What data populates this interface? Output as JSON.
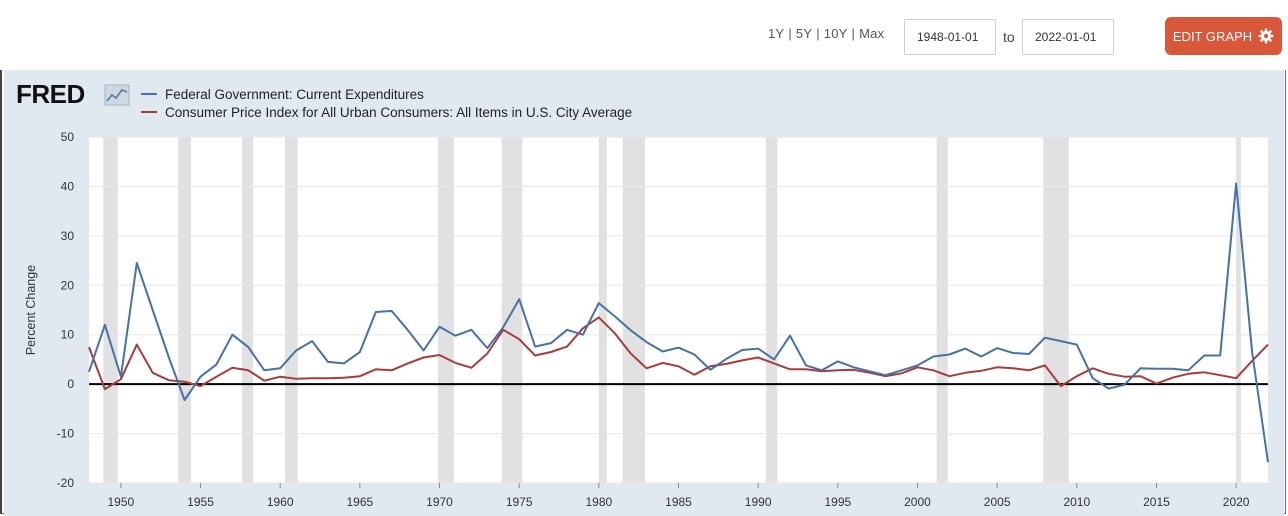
{
  "toolbar": {
    "ranges": [
      "1Y",
      "5Y",
      "10Y",
      "Max"
    ],
    "start_date": "1948-01-01",
    "to_label": "to",
    "end_date": "2022-01-01",
    "edit_label": "EDIT GRAPH",
    "edit_color": "#d9573a"
  },
  "logo": {
    "text": "FRED"
  },
  "chart_data": {
    "type": "line",
    "ylabel": "Percent Change",
    "ylim": [
      -20,
      50
    ],
    "yticks": [
      50,
      40,
      30,
      20,
      10,
      0,
      -10,
      -20
    ],
    "xlim": [
      1948,
      2022
    ],
    "xticks": [
      1950,
      1955,
      1960,
      1965,
      1970,
      1975,
      1980,
      1985,
      1990,
      1995,
      2000,
      2005,
      2010,
      2015,
      2020
    ],
    "grid": true,
    "legend_position": "top-left",
    "recessions": [
      [
        1948.9,
        1949.8
      ],
      [
        1953.6,
        1954.4
      ],
      [
        1957.6,
        1958.3
      ],
      [
        1960.3,
        1961.1
      ],
      [
        1969.9,
        1970.9
      ],
      [
        1973.9,
        1975.2
      ],
      [
        1980.0,
        1980.5
      ],
      [
        1981.5,
        1982.9
      ],
      [
        1990.5,
        1991.2
      ],
      [
        2001.2,
        2001.9
      ],
      [
        2007.9,
        2009.5
      ],
      [
        2020.0,
        2020.3
      ]
    ],
    "series": [
      {
        "name": "Federal Government: Current Expenditures",
        "color": "#4572a7",
        "x": [
          1948,
          1949,
          1950,
          1951,
          1952,
          1953,
          1954,
          1955,
          1956,
          1957,
          1958,
          1959,
          1960,
          1961,
          1962,
          1963,
          1964,
          1965,
          1966,
          1967,
          1968,
          1969,
          1970,
          1971,
          1972,
          1973,
          1974,
          1975,
          1976,
          1977,
          1978,
          1979,
          1980,
          1981,
          1982,
          1983,
          1984,
          1985,
          1986,
          1987,
          1988,
          1989,
          1990,
          1991,
          1992,
          1993,
          1994,
          1995,
          1996,
          1997,
          1998,
          1999,
          2000,
          2001,
          2002,
          2003,
          2004,
          2005,
          2006,
          2007,
          2008,
          2009,
          2010,
          2011,
          2012,
          2013,
          2014,
          2015,
          2016,
          2017,
          2018,
          2019,
          2020,
          2021,
          2022
        ],
        "values": [
          2.5,
          12.0,
          1.5,
          24.5,
          15.0,
          5.5,
          -3.2,
          1.5,
          4.0,
          10.0,
          7.5,
          2.8,
          3.2,
          6.8,
          8.7,
          4.5,
          4.2,
          6.5,
          14.6,
          14.8,
          11.0,
          6.8,
          11.6,
          9.8,
          11.0,
          7.3,
          11.5,
          17.2,
          7.6,
          8.3,
          11.0,
          10.0,
          16.4,
          13.7,
          10.9,
          8.5,
          6.6,
          7.4,
          6.0,
          2.9,
          5.1,
          6.9,
          7.2,
          5.0,
          9.8,
          3.8,
          2.8,
          4.6,
          3.4,
          2.6,
          1.8,
          2.8,
          3.8,
          5.6,
          6.0,
          7.2,
          5.6,
          7.3,
          6.3,
          6.1,
          9.4,
          8.7,
          8.0,
          1.2,
          -0.9,
          -0.1,
          3.2,
          3.1,
          3.1,
          2.8,
          5.8,
          5.8,
          40.6,
          6.5,
          -15.8
        ]
      },
      {
        "name": "Consumer Price Index for All Urban Consumers: All Items in U.S. City Average",
        "color": "#aa3b3b",
        "x": [
          1948,
          1949,
          1950,
          1951,
          1952,
          1953,
          1954,
          1955,
          1956,
          1957,
          1958,
          1959,
          1960,
          1961,
          1962,
          1963,
          1964,
          1965,
          1966,
          1967,
          1968,
          1969,
          1970,
          1971,
          1972,
          1973,
          1974,
          1975,
          1976,
          1977,
          1978,
          1979,
          1980,
          1981,
          1982,
          1983,
          1984,
          1985,
          1986,
          1987,
          1988,
          1989,
          1990,
          1991,
          1992,
          1993,
          1994,
          1995,
          1996,
          1997,
          1998,
          1999,
          2000,
          2001,
          2002,
          2003,
          2004,
          2005,
          2006,
          2007,
          2008,
          2009,
          2010,
          2011,
          2012,
          2013,
          2014,
          2015,
          2016,
          2017,
          2018,
          2019,
          2020,
          2021,
          2022
        ],
        "values": [
          7.5,
          -1.0,
          1.0,
          8.0,
          2.3,
          0.8,
          0.5,
          -0.4,
          1.5,
          3.3,
          2.8,
          0.7,
          1.5,
          1.1,
          1.2,
          1.2,
          1.3,
          1.6,
          3.0,
          2.8,
          4.2,
          5.4,
          5.9,
          4.3,
          3.3,
          6.2,
          11.0,
          9.1,
          5.8,
          6.5,
          7.6,
          11.3,
          13.5,
          10.3,
          6.2,
          3.2,
          4.3,
          3.6,
          1.9,
          3.6,
          4.1,
          4.8,
          5.4,
          4.2,
          3.0,
          3.0,
          2.6,
          2.8,
          2.9,
          2.3,
          1.6,
          2.2,
          3.4,
          2.8,
          1.6,
          2.3,
          2.7,
          3.4,
          3.2,
          2.8,
          3.8,
          -0.4,
          1.6,
          3.2,
          2.1,
          1.5,
          1.6,
          0.1,
          1.3,
          2.1,
          2.4,
          1.8,
          1.2,
          4.7,
          8.0
        ]
      }
    ]
  }
}
